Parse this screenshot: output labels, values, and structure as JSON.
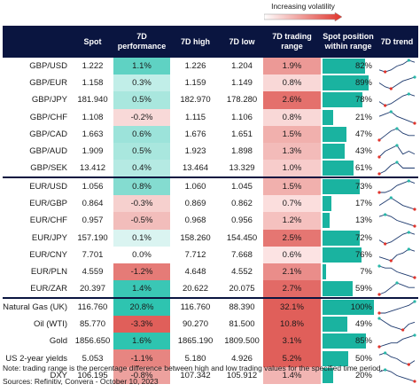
{
  "legend": {
    "label": "Increasing volatility"
  },
  "colors": {
    "header_bg": "#0a1540",
    "teal": "#1ab3a0",
    "red": "#d9534f",
    "sparkline": "#1e3a6e",
    "spark_high": "#2ab7a9",
    "spark_low": "#e0342c"
  },
  "chart_data": {
    "type": "table",
    "columns": [
      "",
      "Spot",
      "7D performance",
      "7D high",
      "7D low",
      "7D trading range",
      "Spot position within range",
      "7D trend"
    ],
    "groups": [
      {
        "rows": [
          {
            "pair": "GBP/USD",
            "spot": "1.222",
            "perf": "1.1%",
            "high": "1.226",
            "low": "1.204",
            "range": "1.9%",
            "position": "82%",
            "trend": [
              3,
              2,
              3,
              5,
              6,
              8,
              7
            ]
          },
          {
            "pair": "GBP/EUR",
            "spot": "1.158",
            "perf": "0.3%",
            "high": "1.159",
            "low": "1.149",
            "range": "0.8%",
            "position": "89%",
            "trend": [
              5,
              3,
              2,
              4,
              6,
              7,
              8
            ]
          },
          {
            "pair": "GBP/JPY",
            "spot": "181.940",
            "perf": "0.5%",
            "high": "182.970",
            "low": "178.280",
            "range": "2.6%",
            "position": "78%",
            "trend": [
              4,
              2,
              3,
              5,
              7,
              8,
              7
            ]
          },
          {
            "pair": "GBP/CHF",
            "spot": "1.108",
            "perf": "-0.2%",
            "high": "1.115",
            "low": "1.106",
            "range": "0.8%",
            "position": "21%",
            "trend": [
              6,
              7,
              8,
              6,
              5,
              4,
              3
            ]
          },
          {
            "pair": "GBP/CAD",
            "spot": "1.663",
            "perf": "0.6%",
            "high": "1.676",
            "low": "1.651",
            "range": "1.5%",
            "position": "47%",
            "trend": [
              3,
              5,
              7,
              8,
              6,
              5,
              5
            ]
          },
          {
            "pair": "GBP/AUD",
            "spot": "1.909",
            "perf": "0.5%",
            "high": "1.923",
            "low": "1.898",
            "range": "1.3%",
            "position": "43%",
            "trend": [
              4,
              6,
              7,
              8,
              5,
              6,
              5
            ]
          },
          {
            "pair": "GBP/SEK",
            "spot": "13.412",
            "perf": "0.4%",
            "high": "13.464",
            "low": "13.329",
            "range": "1.0%",
            "position": "61%",
            "trend": [
              4,
              5,
              7,
              8,
              6,
              6,
              6
            ]
          }
        ]
      },
      {
        "rows": [
          {
            "pair": "EUR/USD",
            "spot": "1.056",
            "perf": "0.8%",
            "high": "1.060",
            "low": "1.045",
            "range": "1.5%",
            "position": "73%",
            "trend": [
              3,
              3,
              4,
              6,
              7,
              8,
              7
            ]
          },
          {
            "pair": "EUR/GBP",
            "spot": "0.864",
            "perf": "-0.3%",
            "high": "0.869",
            "low": "0.862",
            "range": "0.7%",
            "position": "17%",
            "trend": [
              4,
              6,
              8,
              6,
              4,
              3,
              2
            ]
          },
          {
            "pair": "EUR/CHF",
            "spot": "0.957",
            "perf": "-0.5%",
            "high": "0.968",
            "low": "0.956",
            "range": "1.2%",
            "position": "13%",
            "trend": [
              7,
              8,
              7,
              5,
              4,
              3,
              2
            ]
          },
          {
            "pair": "EUR/JPY",
            "spot": "157.190",
            "perf": "0.1%",
            "high": "158.260",
            "low": "154.450",
            "range": "2.5%",
            "position": "72%",
            "trend": [
              4,
              2,
              3,
              5,
              7,
              8,
              7
            ]
          },
          {
            "pair": "EUR/CNY",
            "spot": "7.701",
            "perf": "0.0%",
            "high": "7.712",
            "low": "7.668",
            "range": "0.6%",
            "position": "76%",
            "trend": [
              4,
              3,
              2,
              5,
              6,
              8,
              7
            ]
          },
          {
            "pair": "EUR/PLN",
            "spot": "4.559",
            "perf": "-1.2%",
            "high": "4.648",
            "low": "4.552",
            "range": "2.1%",
            "position": "7%",
            "trend": [
              8,
              7,
              7,
              5,
              4,
              3,
              2
            ]
          },
          {
            "pair": "EUR/ZAR",
            "spot": "20.397",
            "perf": "1.4%",
            "high": "20.622",
            "low": "20.075",
            "range": "2.7%",
            "position": "59%",
            "trend": [
              3,
              4,
              6,
              8,
              7,
              6,
              6
            ]
          }
        ]
      },
      {
        "rows": [
          {
            "pair": "Natural Gas (UK)",
            "spot": "116.760",
            "perf": "20.8%",
            "high": "116.760",
            "low": "88.390",
            "range": "32.1%",
            "position": "100%",
            "trend": [
              2,
              2,
              3,
              4,
              5,
              6,
              8
            ]
          },
          {
            "pair": "Oil (WTI)",
            "spot": "85.770",
            "perf": "-3.3%",
            "high": "90.270",
            "low": "81.500",
            "range": "10.8%",
            "position": "49%",
            "trend": [
              8,
              6,
              4,
              3,
              2,
              5,
              6
            ]
          },
          {
            "pair": "Gold",
            "spot": "1856.650",
            "perf": "1.6%",
            "high": "1865.190",
            "low": "1809.500",
            "range": "3.1%",
            "position": "85%",
            "trend": [
              2,
              3,
              4,
              4,
              6,
              7,
              8
            ]
          },
          {
            "pair": "US 2-year yields",
            "spot": "5.053",
            "perf": "-1.1%",
            "high": "5.180",
            "low": "4.926",
            "range": "5.2%",
            "position": "50%",
            "trend": [
              7,
              8,
              6,
              5,
              3,
              2,
              4
            ]
          },
          {
            "pair": "DXY",
            "spot": "106.195",
            "perf": "-0.8%",
            "high": "107.342",
            "low": "105.912",
            "range": "1.4%",
            "position": "20%",
            "trend": [
              7,
              8,
              7,
              5,
              4,
              3,
              2
            ]
          }
        ]
      }
    ]
  },
  "footer": {
    "note": "Note: trading range is the percentage difference between high and low trading values for the specified time period.",
    "source": "Sources: Refinitiv, Convera - October 10, 2023"
  }
}
